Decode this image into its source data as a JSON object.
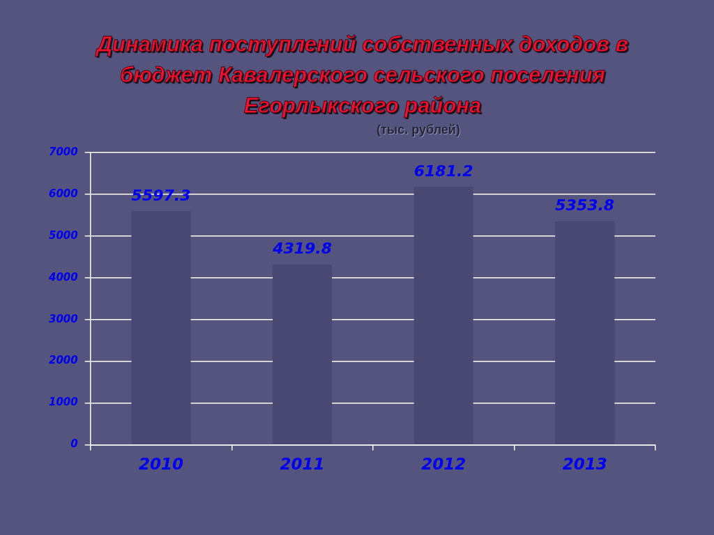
{
  "chart_data": {
    "type": "bar",
    "title": "Динамика поступлений собственных доходов в бюджет Кавалерского сельского поселения Егорлыкского района",
    "subtitle": "(тыс. рублей)",
    "categories": [
      "2010",
      "2011",
      "2012",
      "2013"
    ],
    "values": [
      5597.3,
      4319.8,
      6181.2,
      5353.8
    ],
    "color": "#484872",
    "ylim": [
      0,
      7000
    ],
    "yticks": [
      0,
      1000,
      2000,
      3000,
      4000,
      5000,
      6000,
      7000
    ],
    "grid": "y",
    "data_labels": true
  }
}
